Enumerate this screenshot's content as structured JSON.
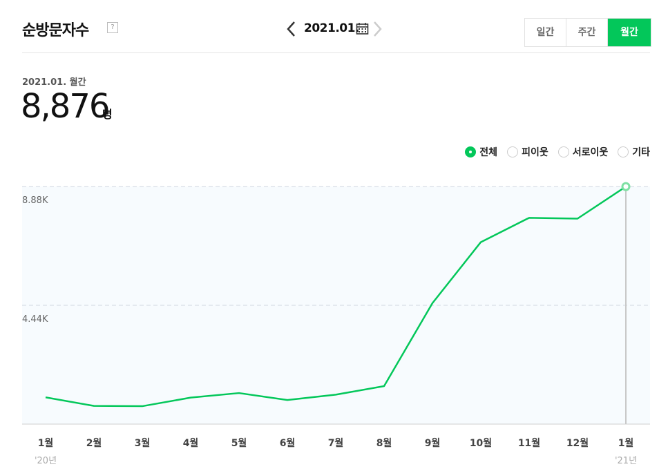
{
  "header": {
    "title": "순방문자수",
    "help": "?",
    "date": "2021.01."
  },
  "period_tabs": [
    {
      "label": "일간",
      "active": false
    },
    {
      "label": "주간",
      "active": false
    },
    {
      "label": "월간",
      "active": true
    }
  ],
  "summary": {
    "period_label": "2021.01. 월간",
    "value": "8,876",
    "unit": "명"
  },
  "legend": [
    {
      "label": "전체",
      "selected": true
    },
    {
      "label": "피이웃",
      "selected": false
    },
    {
      "label": "서로이웃",
      "selected": false
    },
    {
      "label": "기타",
      "selected": false
    }
  ],
  "colors": {
    "accent": "#03c75a",
    "chart_bg": "#f7fbfe",
    "grid": "#dde3ea"
  },
  "chart_data": {
    "type": "line",
    "categories": [
      "1월",
      "2월",
      "3월",
      "4월",
      "5월",
      "6월",
      "7월",
      "8월",
      "9월",
      "10월",
      "11월",
      "12월",
      "1월"
    ],
    "year_labels": [
      {
        "index": 0,
        "label": "'20년"
      },
      {
        "index": 12,
        "label": "'21년"
      }
    ],
    "series": [
      {
        "values": [
          1000,
          680,
          670,
          990,
          1160,
          900,
          1100,
          1420,
          4520,
          6800,
          7710,
          7680,
          8876
        ]
      }
    ],
    "yticks": [
      {
        "value": 4440,
        "label": "4.44K"
      },
      {
        "value": 8880,
        "label": "8.88K"
      }
    ],
    "ylim": [
      0,
      8880
    ],
    "highlight_index": 12
  }
}
